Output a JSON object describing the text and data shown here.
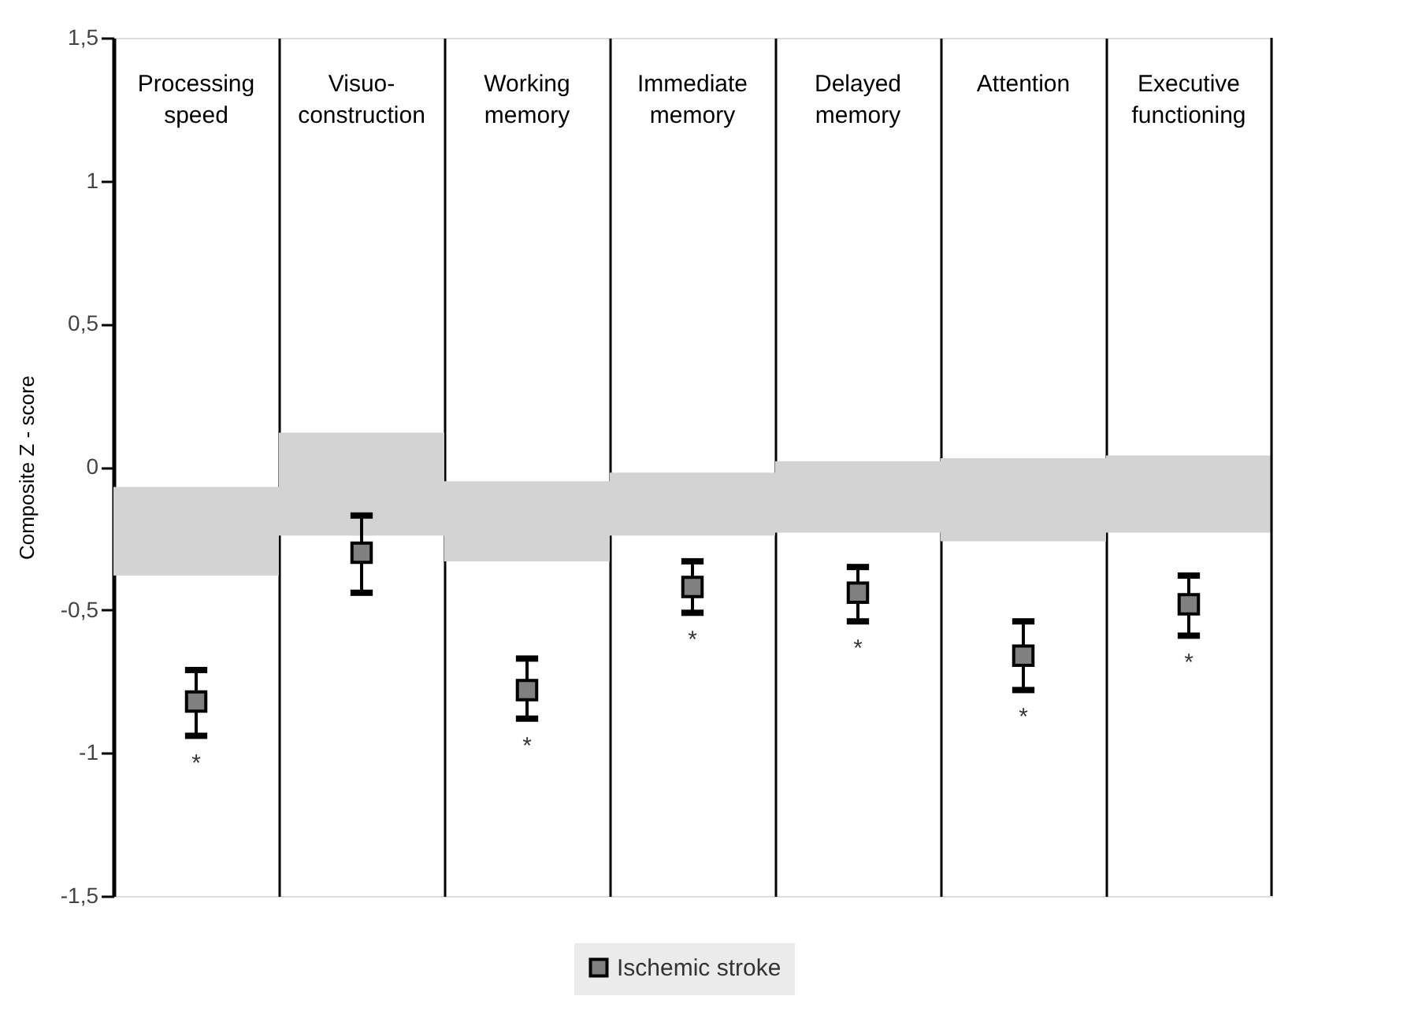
{
  "chart_data": {
    "type": "bar",
    "ylabel": "Composite Z - score",
    "categories": [
      "Processing speed",
      "Visuo-construction",
      "Working memory",
      "Immediate memory",
      "Delayed memory",
      "Attention",
      "Executive functioning"
    ],
    "series": [
      {
        "color": "#d3d3d3",
        "base": [
          -0.38,
          -0.24,
          -0.33,
          -0.24,
          -0.23,
          -0.26,
          -0.23
        ],
        "values": [
          0.31,
          0.36,
          0.28,
          0.22,
          0.25,
          0.29,
          0.27
        ]
      },
      {
        "type": "scatter",
        "name": "Ischemic stroke",
        "color": "#808080",
        "marker": "square",
        "values": [
          -0.82,
          -0.3,
          -0.78,
          -0.42,
          -0.44,
          -0.66,
          -0.48
        ],
        "errors": [
          [
            -0.94,
            -0.71
          ],
          [
            -0.44,
            -0.17
          ],
          [
            -0.88,
            -0.67
          ],
          [
            -0.51,
            -0.33
          ],
          [
            -0.54,
            -0.35
          ],
          [
            -0.78,
            -0.54
          ],
          [
            -0.59,
            -0.38
          ]
        ]
      }
    ],
    "ylim": [
      -1.5,
      1.5
    ],
    "yticks": [
      {
        "value": -1.5,
        "label": "-1,5"
      },
      -1,
      {
        "value": -0.5,
        "label": "-0,5"
      },
      0,
      {
        "value": 0.5,
        "label": "0,5"
      },
      1,
      {
        "value": 1.5,
        "label": "1,5"
      }
    ],
    "grid": "x",
    "legend": "bottom",
    "annotations": [
      {
        "text": "*",
        "x": "Processing speed",
        "y": -0.82
      },
      {
        "text": "*",
        "x": "Working memory",
        "y": -0.78
      },
      {
        "text": "*",
        "x": "Immediate memory",
        "y": -0.42
      },
      {
        "text": "*",
        "x": "Delayed memory",
        "y": -0.44
      },
      {
        "text": "*",
        "x": "Attention",
        "y": -0.66
      },
      {
        "text": "*",
        "x": "Executive functioning",
        "y": -0.48
      }
    ]
  }
}
